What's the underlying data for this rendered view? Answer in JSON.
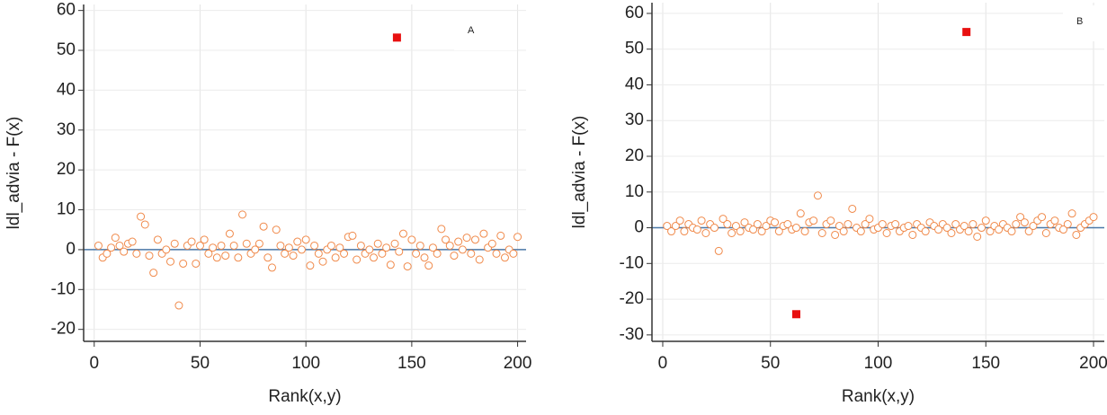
{
  "chart_data": [
    {
      "type": "scatter",
      "annotation": "A",
      "xlabel": "Rank(x,y)",
      "ylabel": "ldl_advia - F(x)",
      "xlim": [
        -5,
        204
      ],
      "ylim": [
        -23,
        61.5
      ],
      "xticks": [
        0,
        50,
        100,
        150,
        200
      ],
      "yticks": [
        -20,
        -10,
        0,
        10,
        20,
        30,
        40,
        50,
        60
      ],
      "grid": true,
      "reference_line": 0,
      "reference_color": "#4a78a8",
      "series": [
        {
          "color": "#f08a4b",
          "marker": "circle",
          "x": [
            2,
            4,
            6,
            8,
            10,
            12,
            14,
            16,
            18,
            20,
            22,
            24,
            26,
            28,
            30,
            32,
            34,
            36,
            38,
            40,
            42,
            44,
            46,
            48,
            50,
            52,
            54,
            56,
            58,
            60,
            62,
            64,
            66,
            68,
            70,
            72,
            74,
            76,
            78,
            80,
            82,
            84,
            86,
            88,
            90,
            92,
            94,
            96,
            98,
            100,
            102,
            104,
            106,
            108,
            110,
            112,
            114,
            116,
            118,
            120,
            122,
            124,
            126,
            128,
            130,
            132,
            134,
            136,
            138,
            140,
            142,
            144,
            146,
            148,
            150,
            152,
            154,
            156,
            158,
            160,
            162,
            164,
            166,
            168,
            170,
            172,
            174,
            176,
            178,
            180,
            182,
            184,
            186,
            188,
            190,
            192,
            194,
            196,
            198,
            200
          ],
          "values": [
            1,
            -2,
            -1,
            0.5,
            3,
            1,
            -0.5,
            1.5,
            2,
            -1,
            8.3,
            6.3,
            -1.5,
            -5.8,
            2.5,
            -1,
            0,
            -3,
            1.5,
            -14,
            -3.5,
            1,
            2,
            -3.5,
            1,
            2.5,
            -1,
            0.5,
            -2,
            1,
            -1.5,
            4,
            1,
            -2,
            8.8,
            1.5,
            -1,
            0,
            1.5,
            5.8,
            -2,
            -4.5,
            5,
            1,
            -1,
            0.5,
            -1.5,
            2,
            0,
            2.5,
            -4,
            1,
            -1,
            -3,
            0,
            1,
            -2,
            0.5,
            -1,
            3.2,
            3.5,
            -2.5,
            1,
            -1,
            0,
            -2,
            1.5,
            -1,
            0.5,
            -3.8,
            1.5,
            -0.5,
            4,
            -4.2,
            2.5,
            -1,
            1,
            -2,
            -4,
            0.5,
            -1,
            5.2,
            2.5,
            1,
            -1.5,
            2,
            0,
            3,
            -1,
            2.5,
            -2.5,
            4,
            0.5,
            1.5,
            -1,
            3.5,
            -2,
            0,
            -1,
            3.2
          ]
        },
        {
          "color": "#e81010",
          "marker": "square",
          "x": [
            143
          ],
          "values": [
            53.2
          ]
        }
      ]
    },
    {
      "type": "scatter",
      "annotation": "B",
      "xlabel": "Rank(x,y)",
      "ylabel": "ldl_advia - F(x)",
      "xlim": [
        -5,
        205
      ],
      "ylim": [
        -31.8,
        63
      ],
      "xticks": [
        0,
        50,
        100,
        150,
        200
      ],
      "yticks": [
        -30,
        -20,
        -10,
        0,
        10,
        20,
        30,
        40,
        50,
        60
      ],
      "grid": true,
      "reference_line": 0,
      "reference_color": "#4a78a8",
      "series": [
        {
          "color": "#f08a4b",
          "marker": "circle",
          "x": [
            2,
            4,
            6,
            8,
            10,
            12,
            14,
            16,
            18,
            20,
            22,
            24,
            26,
            28,
            30,
            32,
            34,
            36,
            38,
            40,
            42,
            44,
            46,
            48,
            50,
            52,
            54,
            56,
            58,
            60,
            62,
            64,
            66,
            68,
            70,
            72,
            74,
            76,
            78,
            80,
            82,
            84,
            86,
            88,
            90,
            92,
            94,
            96,
            98,
            100,
            102,
            104,
            106,
            108,
            110,
            112,
            114,
            116,
            118,
            120,
            122,
            124,
            126,
            128,
            130,
            132,
            134,
            136,
            138,
            140,
            142,
            144,
            146,
            148,
            150,
            152,
            154,
            156,
            158,
            160,
            162,
            164,
            166,
            168,
            170,
            172,
            174,
            176,
            178,
            180,
            182,
            184,
            186,
            188,
            190,
            192,
            194,
            196,
            198,
            200
          ],
          "values": [
            0.5,
            -1,
            0.5,
            2,
            -1,
            1,
            0,
            -0.5,
            2,
            -1.5,
            1,
            0,
            -6.5,
            2.5,
            1,
            -1.5,
            0.5,
            -1,
            1.5,
            0,
            -0.5,
            1,
            -1,
            0.5,
            2,
            1.5,
            -1,
            0.5,
            1,
            -0.5,
            0,
            4,
            -1,
            1.5,
            2,
            9,
            -1.5,
            1,
            2,
            -2,
            0.5,
            -1,
            1,
            5.3,
            0,
            -1,
            1,
            2.5,
            -0.5,
            0,
            1,
            -1.5,
            0.5,
            1,
            -1,
            0,
            0.5,
            -2,
            1,
            0,
            -1,
            1.5,
            0.5,
            -0.5,
            1,
            0,
            -1.5,
            1,
            -0.5,
            0.5,
            -1,
            1,
            -2.5,
            0,
            2,
            -1,
            0.5,
            -0.5,
            1,
            0,
            -1,
            1,
            3,
            1.5,
            -1,
            0.5,
            2,
            3,
            -1.5,
            1,
            2,
            0,
            -0.5,
            1,
            4,
            -2,
            0,
            1,
            2,
            3
          ]
        },
        {
          "color": "#e81010",
          "marker": "square",
          "x": [
            141,
            62
          ],
          "values": [
            54.8,
            -24.2
          ]
        }
      ]
    }
  ]
}
